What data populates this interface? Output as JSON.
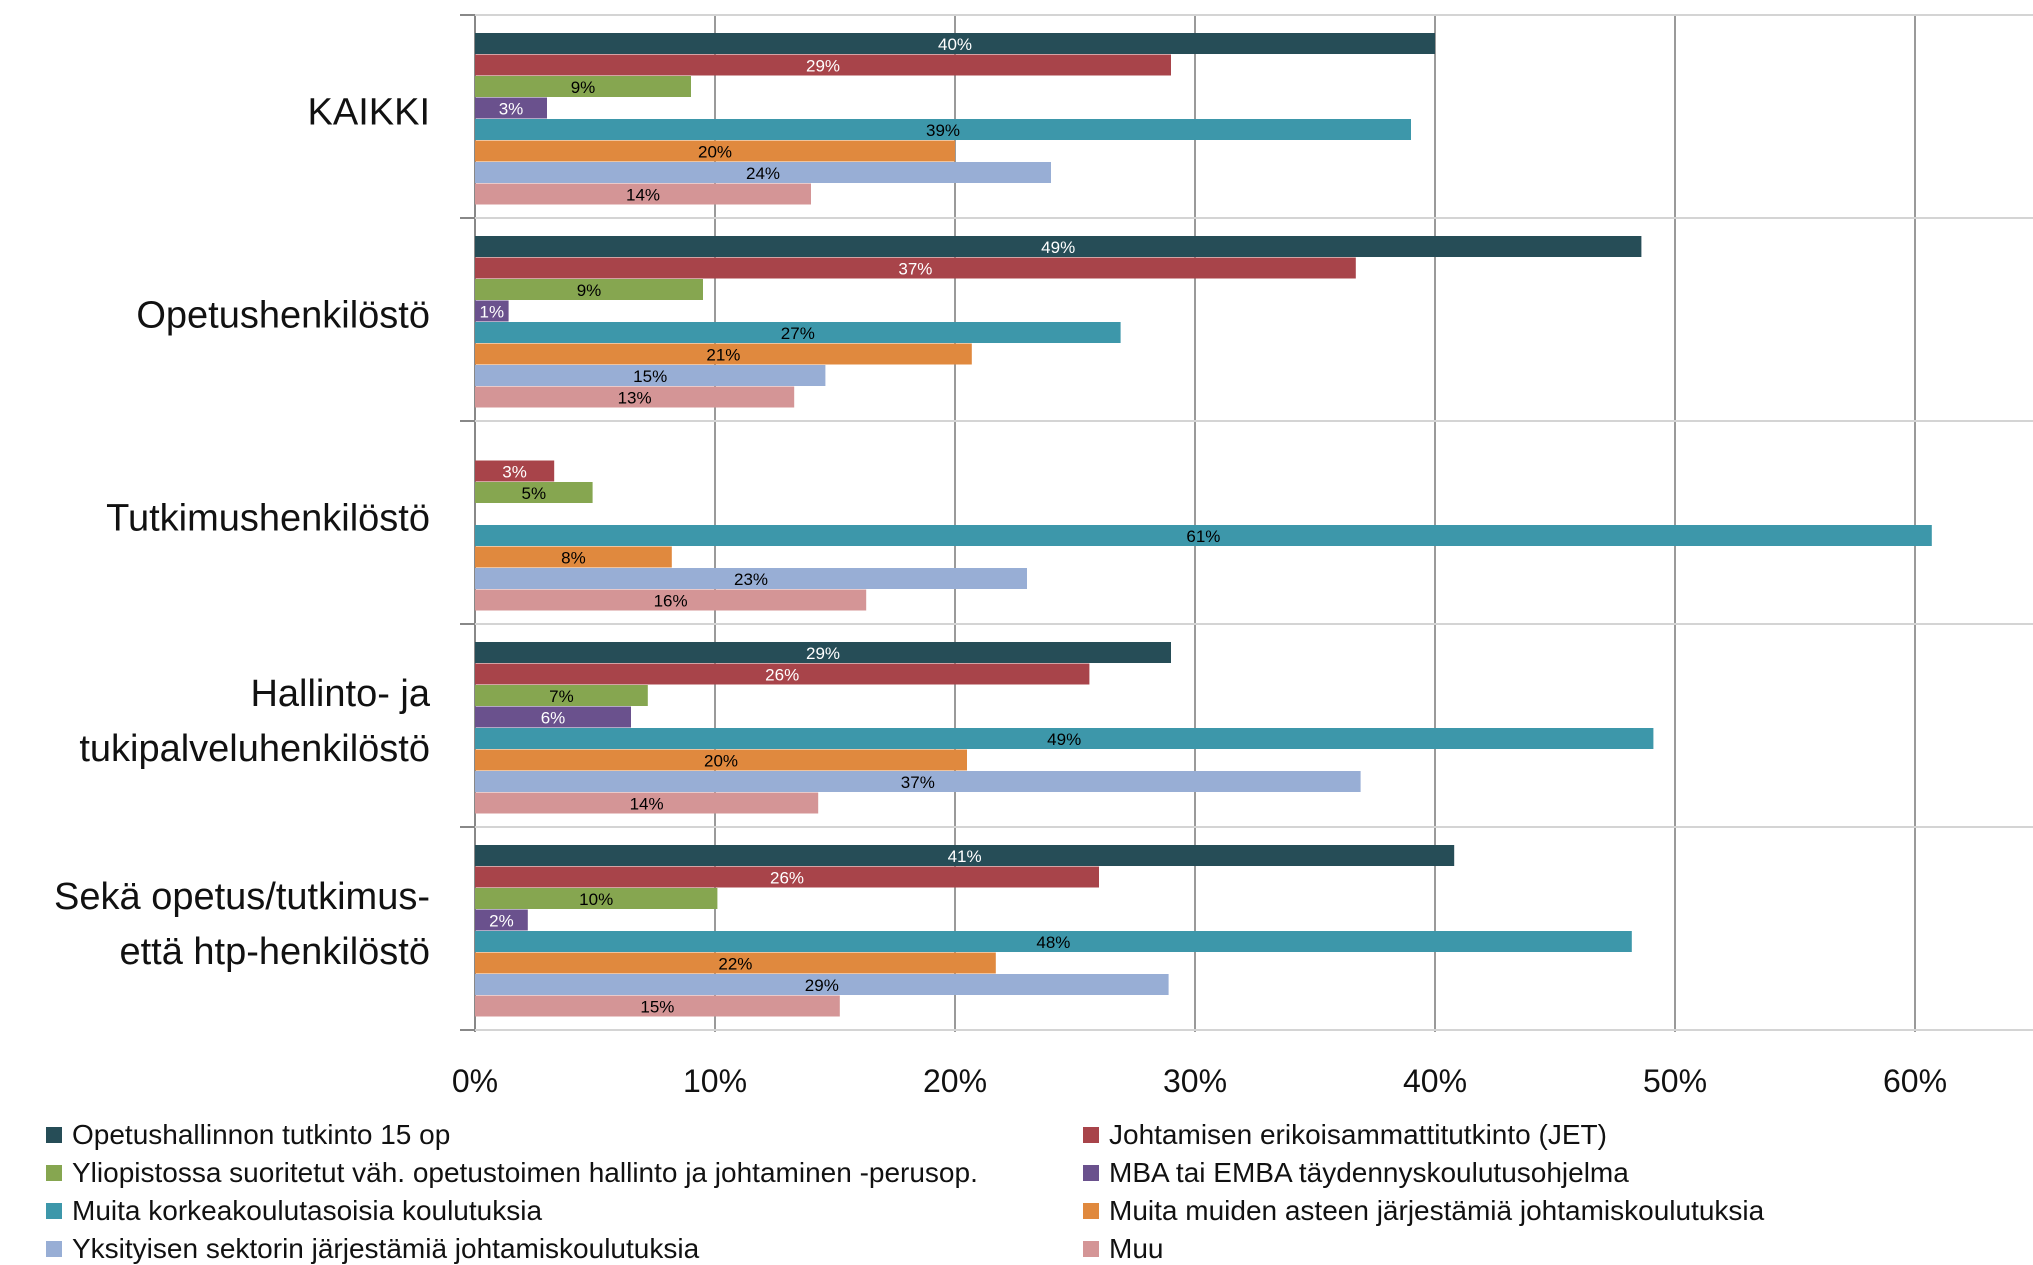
{
  "chart_data": {
    "type": "bar",
    "orientation": "horizontal",
    "categories": [
      [
        "KAIKKI"
      ],
      [
        "Opetushenkilöstö"
      ],
      [
        "Tutkimushenkilöstö"
      ],
      [
        "Hallinto- ja",
        "tukipalveluhenkilöstö"
      ],
      [
        "Sekä opetus/tutkimus-",
        "että htp-henkilöstö"
      ]
    ],
    "xlim": [
      0,
      65
    ],
    "ticks": [
      0,
      10,
      20,
      30,
      40,
      50,
      60
    ],
    "tick_labels": [
      "0%",
      "10%",
      "20%",
      "30%",
      "40%",
      "50%",
      "60%"
    ],
    "grid": "vertical",
    "legend_position": "bottom",
    "series": [
      {
        "name": "Opetushallinnon tutkinto 15 op",
        "color": "#264d57",
        "label_color": "#ffffff",
        "values": [
          40,
          48.6,
          null,
          29,
          40.8
        ],
        "labels": [
          "40%",
          "49%",
          "",
          "29%",
          "41%"
        ]
      },
      {
        "name": "Johtamisen erikoisammattitutkinto (JET)",
        "color": "#a8444a",
        "label_color": "#ffffff",
        "values": [
          29,
          36.7,
          3.3,
          25.6,
          26
        ],
        "labels": [
          "29%",
          "37%",
          "3%",
          "26%",
          "26%"
        ]
      },
      {
        "name": "Yliopistossa suoritetut väh. opetustoimen hallinto ja johtaminen -perusop.",
        "color": "#86a650",
        "label_color": "#000000",
        "values": [
          9,
          9.5,
          4.9,
          7.2,
          10.1
        ],
        "labels": [
          "9%",
          "9%",
          "5%",
          "7%",
          "10%"
        ]
      },
      {
        "name": "MBA tai EMBA täydennyskoulutusohjelma",
        "color": "#6a518d",
        "label_color": "#ffffff",
        "values": [
          3,
          1.4,
          null,
          6.5,
          2.2
        ],
        "labels": [
          "3%",
          "1%",
          "",
          "6%",
          "2%"
        ]
      },
      {
        "name": "Muita korkeakoulutasoisia koulutuksia",
        "color": "#3d97aa",
        "label_color": "#000000",
        "values": [
          39,
          26.9,
          60.7,
          49.1,
          48.2
        ],
        "labels": [
          "39%",
          "27%",
          "61%",
          "49%",
          "48%"
        ]
      },
      {
        "name": "Muita muiden asteen järjestämiä johtamiskoulutuksia",
        "color": "#e0893e",
        "label_color": "#000000",
        "values": [
          20,
          20.7,
          8.2,
          20.5,
          21.7
        ],
        "labels": [
          "20%",
          "21%",
          "8%",
          "20%",
          "22%"
        ]
      },
      {
        "name": "Yksityisen sektorin järjestämiä johtamiskoulutuksia",
        "color": "#98aed5",
        "label_color": "#000000",
        "values": [
          24,
          14.6,
          23,
          36.9,
          28.9
        ],
        "labels": [
          "24%",
          "15%",
          "23%",
          "37%",
          "29%"
        ]
      },
      {
        "name": "Muu",
        "color": "#d49596",
        "label_color": "#000000",
        "values": [
          14,
          13.3,
          16.3,
          14.3,
          15.2
        ],
        "labels": [
          "14%",
          "13%",
          "16%",
          "14%",
          "15%"
        ]
      }
    ]
  }
}
